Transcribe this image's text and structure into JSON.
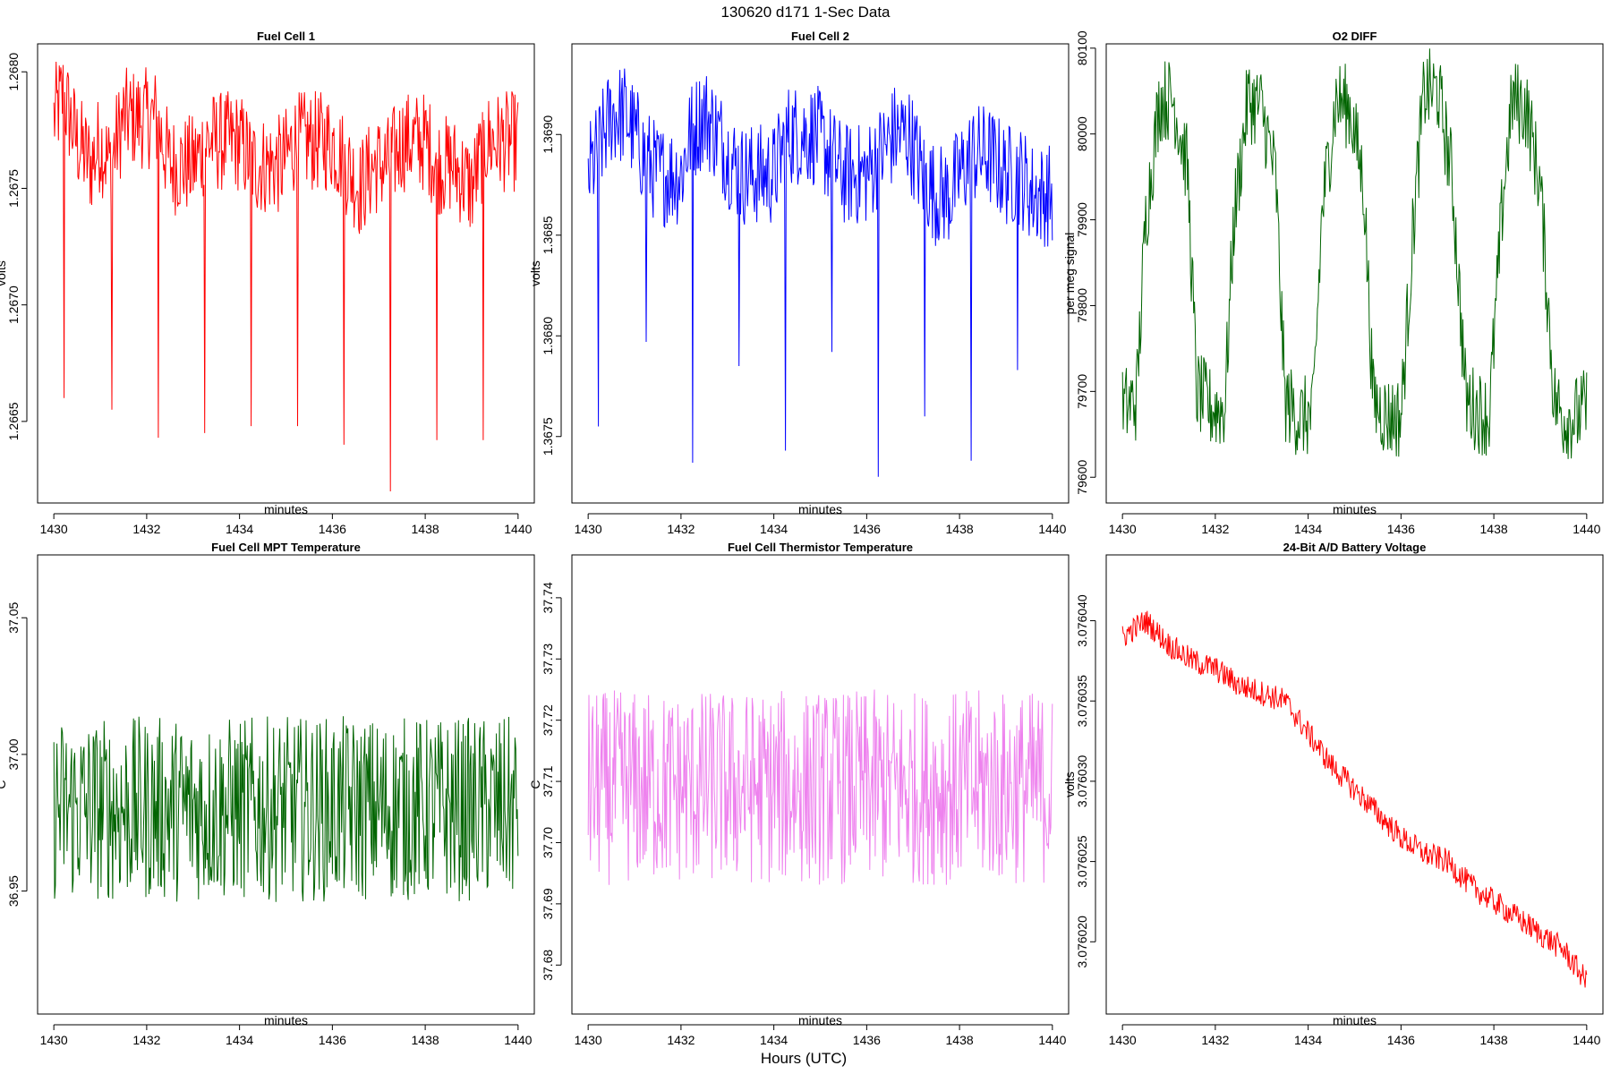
{
  "figure": {
    "title": "130620   d171   1-Sec Data",
    "outer_xlabel": "Hours (UTC)"
  },
  "chart_data": [
    {
      "type": "line",
      "title": "Fuel Cell 1",
      "xlabel": "minutes",
      "ylabel": "volts",
      "color": "#ff0000",
      "xlim": [
        1429.65,
        1440.35
      ],
      "ylim": [
        1.26615,
        1.26812
      ],
      "xticks": [
        1430,
        1432,
        1434,
        1436,
        1438,
        1440
      ],
      "yticks": [
        1.2665,
        1.267,
        1.2675,
        1.268
      ],
      "ytick_labels": [
        "1.2665",
        "1.2670",
        "1.2675",
        "1.2680"
      ],
      "x": [
        1430.0,
        1430.2,
        1430.5,
        1430.8,
        1431.0,
        1431.2,
        1431.5,
        1432.0,
        1432.2,
        1432.5,
        1432.8,
        1433.0,
        1433.3,
        1433.6,
        1434.0,
        1434.3,
        1434.6,
        1434.9,
        1435.2,
        1435.5,
        1436.0,
        1436.3,
        1436.6,
        1436.9,
        1437.2,
        1437.5,
        1437.8,
        1438.0,
        1438.3,
        1438.6,
        1439.0,
        1439.3,
        1439.6,
        1440.0
      ],
      "values": [
        1.2678,
        1.2679,
        1.2677,
        1.2676,
        1.2677,
        1.2676,
        1.2678,
        1.2678,
        1.2678,
        1.2676,
        1.2676,
        1.2676,
        1.2677,
        1.2677,
        1.2677,
        1.2676,
        1.2676,
        1.2676,
        1.2677,
        1.2677,
        1.2677,
        1.2676,
        1.2675,
        1.2676,
        1.2676,
        1.2677,
        1.2677,
        1.2677,
        1.2676,
        1.2676,
        1.2675,
        1.2677,
        1.2677,
        1.2677
      ],
      "noise": 0.00022,
      "dips": [
        [
          1430.22,
          1.2666
        ],
        [
          1431.25,
          1.26655
        ],
        [
          1432.25,
          1.26643
        ],
        [
          1433.25,
          1.26645
        ],
        [
          1434.25,
          1.26648
        ],
        [
          1435.25,
          1.26648
        ],
        [
          1436.25,
          1.2664
        ],
        [
          1437.25,
          1.2662
        ],
        [
          1438.25,
          1.26642
        ],
        [
          1439.25,
          1.26642
        ]
      ]
    },
    {
      "type": "line",
      "title": "Fuel Cell 2",
      "xlabel": "minutes",
      "ylabel": "volts",
      "color": "#0000ff",
      "xlim": [
        1429.65,
        1440.35
      ],
      "ylim": [
        1.36717,
        1.36945
      ],
      "xticks": [
        1430,
        1432,
        1434,
        1436,
        1438,
        1440
      ],
      "yticks": [
        1.3675,
        1.368,
        1.3685,
        1.369
      ],
      "ytick_labels": [
        "1.3675",
        "1.3680",
        "1.3685",
        "1.3690"
      ],
      "x": [
        1430.0,
        1430.2,
        1430.5,
        1430.8,
        1431.0,
        1431.2,
        1431.5,
        1432.0,
        1432.2,
        1432.5,
        1432.8,
        1433.0,
        1433.3,
        1433.6,
        1434.0,
        1434.3,
        1434.6,
        1434.9,
        1435.2,
        1435.5,
        1436.0,
        1436.3,
        1436.6,
        1436.9,
        1437.2,
        1437.5,
        1437.8,
        1438.0,
        1438.3,
        1438.6,
        1439.0,
        1439.3,
        1439.6,
        1440.0
      ],
      "values": [
        1.3688,
        1.3689,
        1.3691,
        1.3691,
        1.369,
        1.3689,
        1.3688,
        1.3688,
        1.369,
        1.3691,
        1.369,
        1.3689,
        1.3688,
        1.3688,
        1.3688,
        1.369,
        1.369,
        1.369,
        1.3689,
        1.3688,
        1.3688,
        1.3689,
        1.369,
        1.369,
        1.3688,
        1.3687,
        1.3687,
        1.3688,
        1.3689,
        1.3689,
        1.3688,
        1.3688,
        1.3687,
        1.3687
      ],
      "noise": 0.00026,
      "dips": [
        [
          1430.22,
          1.36755
        ],
        [
          1431.25,
          1.36797
        ],
        [
          1432.25,
          1.36737
        ],
        [
          1433.25,
          1.36785
        ],
        [
          1434.25,
          1.36743
        ],
        [
          1435.25,
          1.36792
        ],
        [
          1436.25,
          1.3673
        ],
        [
          1437.25,
          1.3676
        ],
        [
          1438.25,
          1.36738
        ],
        [
          1439.25,
          1.36783
        ]
      ]
    },
    {
      "type": "line",
      "title": "O2 DIFF",
      "xlabel": "minutes",
      "ylabel": "per meg signal",
      "color": "#006400",
      "xlim": [
        1429.65,
        1440.35
      ],
      "ylim": [
        79570,
        80105
      ],
      "xticks": [
        1430,
        1432,
        1434,
        1436,
        1438,
        1440
      ],
      "yticks": [
        79600,
        79700,
        79800,
        79900,
        80000,
        80100
      ],
      "ytick_labels": [
        "79600",
        "79700",
        "79800",
        "79900",
        "80000",
        "80100"
      ],
      "x": [
        1430.0,
        1430.3,
        1430.5,
        1430.8,
        1431.1,
        1431.4,
        1431.6,
        1431.9,
        1432.2,
        1432.4,
        1432.7,
        1433.0,
        1433.3,
        1433.5,
        1433.8,
        1434.1,
        1434.3,
        1434.6,
        1434.9,
        1435.2,
        1435.4,
        1435.7,
        1436.0,
        1436.3,
        1436.5,
        1436.8,
        1437.1,
        1437.4,
        1437.6,
        1437.9,
        1438.2,
        1438.4,
        1438.7,
        1439.0,
        1439.3,
        1439.5,
        1439.8,
        1440.0
      ],
      "values": [
        79680,
        79690,
        79900,
        80040,
        80040,
        79960,
        79700,
        79680,
        79680,
        79900,
        80040,
        80030,
        79950,
        79690,
        79670,
        79670,
        79910,
        80040,
        80030,
        79940,
        79690,
        79670,
        79670,
        79920,
        80050,
        80050,
        79950,
        79690,
        79680,
        79670,
        79930,
        80040,
        80030,
        79940,
        79690,
        79670,
        79670,
        79680
      ],
      "noise": 50
    },
    {
      "type": "line",
      "title": "Fuel Cell MPT Temperature",
      "xlabel": "minutes",
      "ylabel": "C",
      "color": "#006400",
      "xlim": [
        1429.65,
        1440.35
      ],
      "ylim": [
        36.905,
        37.073
      ],
      "xticks": [
        1430,
        1432,
        1434,
        1436,
        1438,
        1440
      ],
      "yticks": [
        36.95,
        37.0,
        37.05
      ],
      "ytick_labels": [
        "36.95",
        "37.00",
        "37.05"
      ],
      "x": [
        1430.0,
        1432.0,
        1434.0,
        1436.0,
        1438.0,
        1440.0
      ],
      "values": [
        36.98,
        36.98,
        36.98,
        36.98,
        36.98,
        36.98
      ],
      "noise": 0.034
    },
    {
      "type": "line",
      "title": "Fuel Cell Thermistor Temperature",
      "xlabel": "minutes",
      "ylabel": "C",
      "color": "#ee82ee",
      "xlim": [
        1429.65,
        1440.35
      ],
      "ylim": [
        37.672,
        37.747
      ],
      "xticks": [
        1430,
        1432,
        1434,
        1436,
        1438,
        1440
      ],
      "yticks": [
        37.68,
        37.69,
        37.7,
        37.71,
        37.72,
        37.73,
        37.74
      ],
      "ytick_labels": [
        "37.68",
        "37.69",
        "37.70",
        "37.71",
        "37.72",
        "37.73",
        "37.74"
      ],
      "x": [
        1430.0,
        1432.0,
        1434.0,
        1436.0,
        1438.0,
        1440.0
      ],
      "values": [
        37.709,
        37.709,
        37.709,
        37.709,
        37.709,
        37.709
      ],
      "noise": 0.016
    },
    {
      "type": "line",
      "title": "24-Bit A/D Battery Voltage",
      "xlabel": "minutes",
      "ylabel": "volts",
      "color": "#ff0000",
      "xlim": [
        1429.65,
        1440.35
      ],
      "ylim": [
        3.0760155,
        3.0760441
      ],
      "xticks": [
        1430,
        1432,
        1434,
        1436,
        1438,
        1440
      ],
      "yticks": [
        3.07602,
        3.076025,
        3.07603,
        3.076035,
        3.07604
      ],
      "ytick_labels": [
        "3.076020",
        "3.076025",
        "3.076030",
        "3.076035",
        "3.076040"
      ],
      "x": [
        1430.0,
        1430.5,
        1431.0,
        1431.5,
        1432.0,
        1432.5,
        1433.0,
        1433.5,
        1434.0,
        1434.5,
        1435.0,
        1435.5,
        1436.0,
        1436.5,
        1437.0,
        1437.5,
        1438.0,
        1438.5,
        1439.0,
        1439.5,
        1440.0
      ],
      "values": [
        3.076039,
        3.07604,
        3.0760385,
        3.0760375,
        3.076037,
        3.076036,
        3.0760355,
        3.076035,
        3.076033,
        3.076031,
        3.0760295,
        3.076028,
        3.0760265,
        3.0760255,
        3.076025,
        3.0760235,
        3.0760225,
        3.0760215,
        3.0760205,
        3.0760195,
        3.0760175
      ],
      "noise": 8e-07
    }
  ]
}
